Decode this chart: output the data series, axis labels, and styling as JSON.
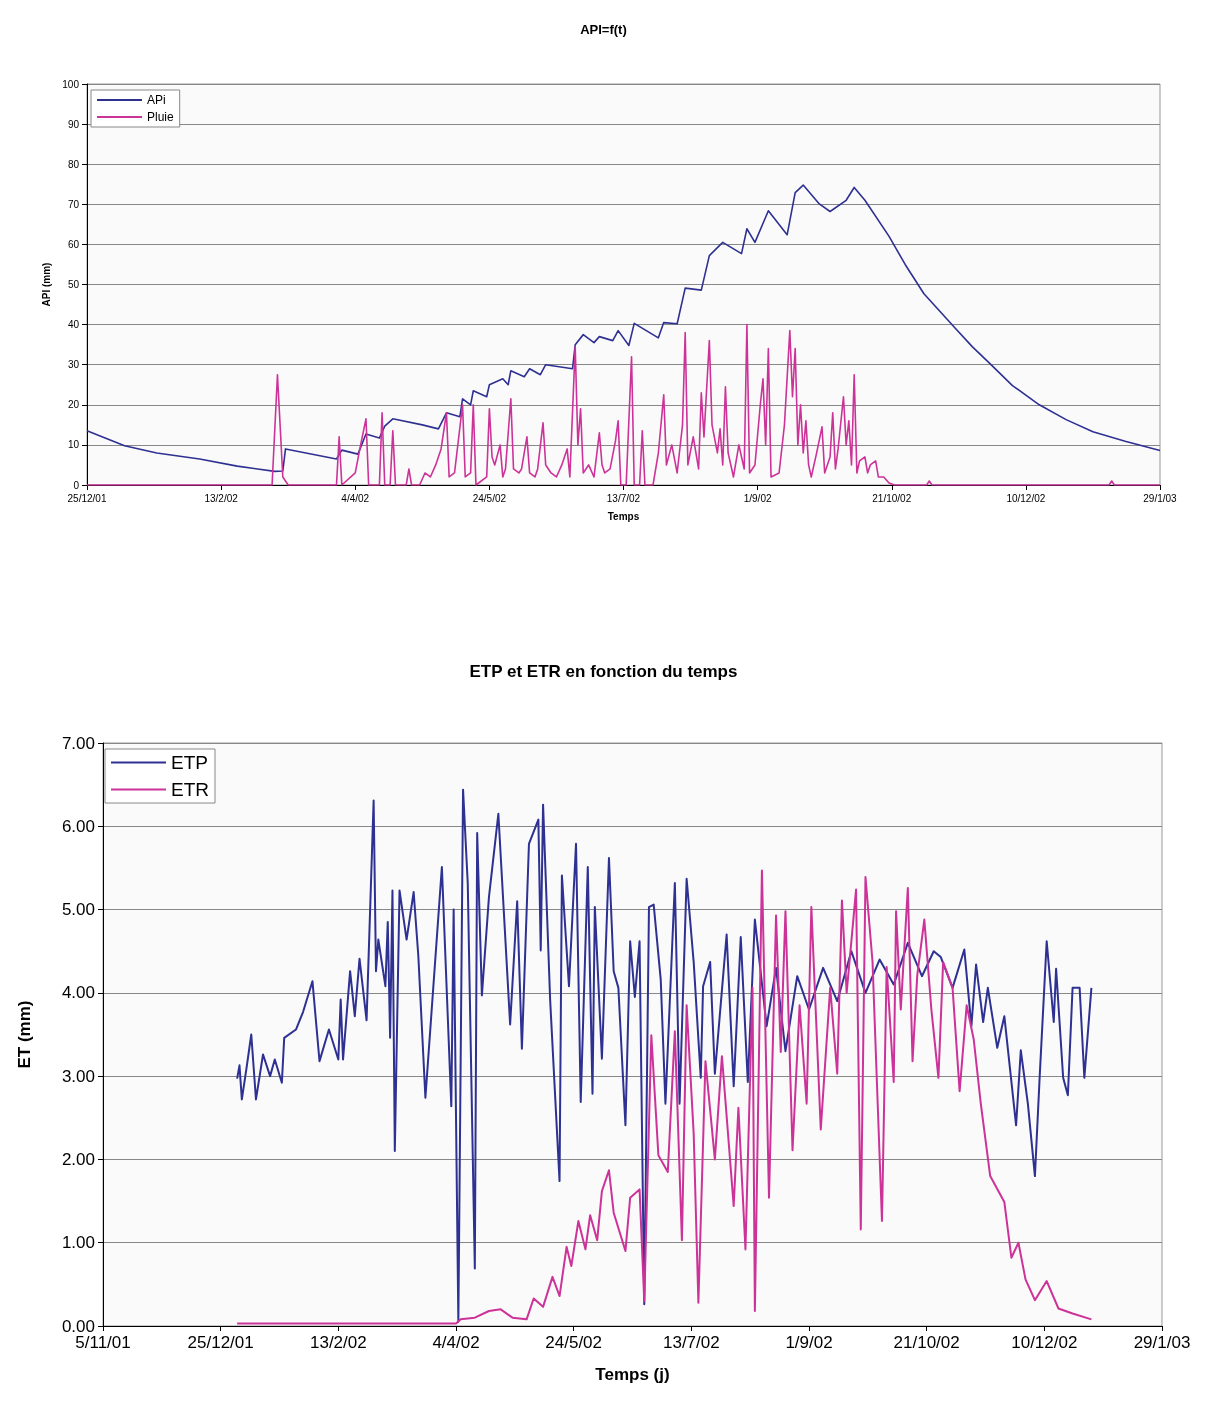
{
  "chart_data": [
    {
      "type": "line",
      "title": "API=f(t)",
      "xlabel": "Temps",
      "ylabel": "API (mm)",
      "xlim": [
        "2001-12-25",
        "2003-01-29"
      ],
      "xticks": [
        {
          "value": "2001-12-25",
          "label": "25/12/01"
        },
        {
          "value": "2002-02-13",
          "label": "13/2/02"
        },
        {
          "value": "2002-04-04",
          "label": "4/4/02"
        },
        {
          "value": "2002-05-24",
          "label": "24/5/02"
        },
        {
          "value": "2002-07-13",
          "label": "13/7/02"
        },
        {
          "value": "2002-09-01",
          "label": "1/9/02"
        },
        {
          "value": "2002-10-21",
          "label": "21/10/02"
        },
        {
          "value": "2002-12-10",
          "label": "10/12/02"
        },
        {
          "value": "2003-01-29",
          "label": "29/1/03"
        }
      ],
      "ylim": [
        0,
        100
      ],
      "yticks": [
        0,
        10,
        20,
        30,
        40,
        50,
        60,
        70,
        80,
        90,
        100
      ],
      "grid": "y",
      "legend": "top left",
      "series": [
        {
          "name": "APi",
          "color": "#2e3192",
          "x": [
            "2001-12-25",
            "2002-01-08",
            "2002-01-20",
            "2002-02-05",
            "2002-02-19",
            "2002-03-05",
            "2002-03-08",
            "2002-03-09",
            "2002-03-28",
            "2002-03-30",
            "2002-04-05",
            "2002-04-08",
            "2002-04-13",
            "2002-04-15",
            "2002-04-18",
            "2002-04-29",
            "2002-05-05",
            "2002-05-08",
            "2002-05-13",
            "2002-05-14",
            "2002-05-17",
            "2002-05-18",
            "2002-05-23",
            "2002-05-24",
            "2002-05-29",
            "2002-05-31",
            "2002-06-01",
            "2002-06-06",
            "2002-06-08",
            "2002-06-12",
            "2002-06-14",
            "2002-06-24",
            "2002-06-25",
            "2002-06-28",
            "2002-07-02",
            "2002-07-04",
            "2002-07-09",
            "2002-07-11",
            "2002-07-15",
            "2002-07-17",
            "2002-07-26",
            "2002-07-28",
            "2002-08-02",
            "2002-08-05",
            "2002-08-11",
            "2002-08-14",
            "2002-08-19",
            "2002-08-26",
            "2002-08-28",
            "2002-08-31",
            "2002-09-05",
            "2002-09-12",
            "2002-09-15",
            "2002-09-18",
            "2002-09-24",
            "2002-09-28",
            "2002-10-04",
            "2002-10-07",
            "2002-10-11",
            "2002-10-20",
            "2002-10-26",
            "2002-11-02",
            "2002-11-13",
            "2002-11-20",
            "2002-11-27",
            "2002-12-05",
            "2002-12-15",
            "2002-12-25",
            "2003-01-04",
            "2003-01-16",
            "2003-01-29"
          ],
          "values": [
            13.5,
            9.8,
            8.0,
            6.5,
            4.7,
            3.4,
            3.5,
            9,
            6.5,
            8.7,
            7.7,
            12.7,
            11.7,
            14.7,
            16.5,
            15,
            14,
            18,
            17,
            21.5,
            20,
            23.5,
            22,
            25,
            26.5,
            25,
            28.5,
            27,
            29,
            27.5,
            30,
            29,
            35,
            37.5,
            35.5,
            37,
            36,
            38.5,
            34.8,
            40.3,
            36.7,
            40.5,
            40.2,
            49.1,
            48.6,
            57.2,
            60.5,
            57.7,
            63.9,
            60.5,
            68.4,
            62.4,
            72.9,
            74.8,
            70.1,
            68.2,
            71,
            74.2,
            71,
            62,
            55,
            47.7,
            39.6,
            34.5,
            30,
            24.8,
            20,
            16.3,
            13.3,
            10.9,
            8.6
          ]
        },
        {
          "name": "Pluie",
          "color": "#cc3399",
          "x": [
            "2001-12-25",
            "2002-03-04",
            "2002-03-06",
            "2002-03-08",
            "2002-03-10",
            "2002-03-28",
            "2002-03-29",
            "2002-03-30",
            "2002-04-04",
            "2002-04-06",
            "2002-04-08",
            "2002-04-09",
            "2002-04-13",
            "2002-04-14",
            "2002-04-15",
            "2002-04-17",
            "2002-04-18",
            "2002-04-19",
            "2002-04-23",
            "2002-04-24",
            "2002-04-25",
            "2002-04-28",
            "2002-04-30",
            "2002-05-02",
            "2002-05-04",
            "2002-05-06",
            "2002-05-08",
            "2002-05-09",
            "2002-05-11",
            "2002-05-14",
            "2002-05-15",
            "2002-05-17",
            "2002-05-18",
            "2002-05-19",
            "2002-05-23",
            "2002-05-24",
            "2002-05-25",
            "2002-05-26",
            "2002-05-28",
            "2002-05-29",
            "2002-05-30",
            "2002-06-01",
            "2002-06-02",
            "2002-06-04",
            "2002-06-05",
            "2002-06-07",
            "2002-06-08",
            "2002-06-10",
            "2002-06-11",
            "2002-06-13",
            "2002-06-14",
            "2002-06-16",
            "2002-06-18",
            "2002-06-20",
            "2002-06-22",
            "2002-06-23",
            "2002-06-25",
            "2002-06-26",
            "2002-06-27",
            "2002-06-28",
            "2002-06-30",
            "2002-07-02",
            "2002-07-04",
            "2002-07-05",
            "2002-07-06",
            "2002-07-08",
            "2002-07-10",
            "2002-07-11",
            "2002-07-12",
            "2002-07-14",
            "2002-07-16",
            "2002-07-17",
            "2002-07-19",
            "2002-07-20",
            "2002-07-21",
            "2002-07-24",
            "2002-07-26",
            "2002-07-28",
            "2002-07-29",
            "2002-07-31",
            "2002-08-02",
            "2002-08-04",
            "2002-08-05",
            "2002-08-06",
            "2002-08-08",
            "2002-08-10",
            "2002-08-11",
            "2002-08-12",
            "2002-08-14",
            "2002-08-15",
            "2002-08-17",
            "2002-08-18",
            "2002-08-19",
            "2002-08-20",
            "2002-08-21",
            "2002-08-23",
            "2002-08-25",
            "2002-08-27",
            "2002-08-28",
            "2002-08-29",
            "2002-08-31",
            "2002-09-02",
            "2002-09-03",
            "2002-09-04",
            "2002-09-05",
            "2002-09-06",
            "2002-09-09",
            "2002-09-11",
            "2002-09-13",
            "2002-09-14",
            "2002-09-15",
            "2002-09-16",
            "2002-09-17",
            "2002-09-18",
            "2002-09-19",
            "2002-09-20",
            "2002-09-21",
            "2002-09-23",
            "2002-09-25",
            "2002-09-26",
            "2002-09-28",
            "2002-09-29",
            "2002-09-30",
            "2002-10-01",
            "2002-10-03",
            "2002-10-04",
            "2002-10-05",
            "2002-10-06",
            "2002-10-07",
            "2002-10-08",
            "2002-10-09",
            "2002-10-11",
            "2002-10-12",
            "2002-10-13",
            "2002-10-15",
            "2002-10-16",
            "2002-10-18",
            "2002-10-20",
            "2002-10-22",
            "2002-11-03",
            "2002-11-04",
            "2002-11-05",
            "2003-01-10",
            "2003-01-11",
            "2003-01-12",
            "2003-01-29"
          ],
          "values": [
            0,
            0,
            27.5,
            2,
            0,
            0,
            12,
            0,
            3,
            10,
            16.5,
            0,
            0,
            18,
            0,
            0,
            13.5,
            0,
            0,
            4,
            0,
            0,
            3,
            2,
            5,
            9,
            18,
            2,
            3,
            20,
            2,
            3,
            20,
            0,
            2,
            19,
            7,
            5,
            10,
            2,
            4,
            21.5,
            4,
            3,
            4,
            12,
            3,
            2,
            4,
            15.5,
            5,
            3,
            2,
            5,
            9,
            2,
            34.5,
            10,
            19,
            3,
            5,
            2,
            13,
            5,
            3,
            4,
            11,
            16,
            0,
            0,
            32,
            0,
            0,
            13.5,
            0,
            0,
            8,
            22.5,
            5,
            10,
            3,
            15,
            38,
            5,
            12,
            4,
            23,
            12,
            36,
            15,
            8,
            14,
            5,
            24.5,
            8,
            2,
            10,
            4,
            40,
            3,
            5,
            20,
            26.5,
            10,
            34,
            2,
            3,
            15,
            38.5,
            22,
            34,
            10,
            20,
            8,
            16,
            5,
            2,
            8,
            14.5,
            3,
            7,
            18,
            4,
            9,
            22,
            10,
            16,
            5,
            27.5,
            3,
            6,
            7,
            3,
            5,
            6,
            2,
            2,
            0.5,
            0,
            0,
            1,
            0,
            0,
            1,
            0,
            0
          ]
        }
      ]
    },
    {
      "type": "line",
      "title": "ETP et ETR en fonction du temps",
      "xlabel": "Temps (j)",
      "ylabel": "ET (mm)",
      "xlim": [
        "2001-11-05",
        "2003-01-29"
      ],
      "xticks": [
        {
          "value": "2001-11-05",
          "label": "5/11/01"
        },
        {
          "value": "2001-12-25",
          "label": "25/12/01"
        },
        {
          "value": "2002-02-13",
          "label": "13/2/02"
        },
        {
          "value": "2002-04-04",
          "label": "4/4/02"
        },
        {
          "value": "2002-05-24",
          "label": "24/5/02"
        },
        {
          "value": "2002-07-13",
          "label": "13/7/02"
        },
        {
          "value": "2002-09-01",
          "label": "1/9/02"
        },
        {
          "value": "2002-10-21",
          "label": "21/10/02"
        },
        {
          "value": "2002-12-10",
          "label": "10/12/02"
        },
        {
          "value": "2003-01-29",
          "label": "29/1/03"
        }
      ],
      "ylim": [
        0,
        7
      ],
      "yticks": [
        {
          "value": 0,
          "label": "0.00"
        },
        {
          "value": 1,
          "label": "1.00"
        },
        {
          "value": 2,
          "label": "2.00"
        },
        {
          "value": 3,
          "label": "3.00"
        },
        {
          "value": 4,
          "label": "4.00"
        },
        {
          "value": 5,
          "label": "5.00"
        },
        {
          "value": 6,
          "label": "6.00"
        },
        {
          "value": 7,
          "label": "7.00"
        }
      ],
      "grid": "y",
      "legend": "top left",
      "series": [
        {
          "name": "ETP",
          "color": "#2e3192",
          "x": [
            "2002-01-01",
            "2002-01-02",
            "2002-01-03",
            "2002-01-05",
            "2002-01-07",
            "2002-01-09",
            "2002-01-12",
            "2002-01-15",
            "2002-01-17",
            "2002-01-20",
            "2002-01-21",
            "2002-01-26",
            "2002-01-29",
            "2002-02-02",
            "2002-02-05",
            "2002-02-09",
            "2002-02-13",
            "2002-02-14",
            "2002-02-15",
            "2002-02-18",
            "2002-02-20",
            "2002-02-22",
            "2002-02-25",
            "2002-02-28",
            "2002-03-01",
            "2002-03-02",
            "2002-03-05",
            "2002-03-06",
            "2002-03-07",
            "2002-03-08",
            "2002-03-09",
            "2002-03-11",
            "2002-03-14",
            "2002-03-17",
            "2002-03-19",
            "2002-03-22",
            "2002-03-29",
            "2002-04-02",
            "2002-04-03",
            "2002-04-05",
            "2002-04-07",
            "2002-04-09",
            "2002-04-12",
            "2002-04-13",
            "2002-04-15",
            "2002-04-18",
            "2002-04-22",
            "2002-04-27",
            "2002-04-30",
            "2002-05-02",
            "2002-05-05",
            "2002-05-09",
            "2002-05-10",
            "2002-05-11",
            "2002-05-14",
            "2002-05-18",
            "2002-05-19",
            "2002-05-22",
            "2002-05-25",
            "2002-05-27",
            "2002-05-30",
            "2002-06-01",
            "2002-06-02",
            "2002-06-05",
            "2002-06-08",
            "2002-06-10",
            "2002-06-12",
            "2002-06-15",
            "2002-06-17",
            "2002-06-19",
            "2002-06-21",
            "2002-06-23",
            "2002-06-25",
            "2002-06-27",
            "2002-06-30",
            "2002-07-02",
            "2002-07-06",
            "2002-07-08",
            "2002-07-11",
            "2002-07-14",
            "2002-07-17",
            "2002-07-18",
            "2002-07-21",
            "2002-07-23",
            "2002-07-28",
            "2002-07-31",
            "2002-08-03",
            "2002-08-06",
            "2002-08-09",
            "2002-08-14",
            "2002-08-18",
            "2002-08-22",
            "2002-08-27",
            "2002-09-01",
            "2002-09-07",
            "2002-09-13",
            "2002-09-19",
            "2002-09-25",
            "2002-10-01",
            "2002-10-07",
            "2002-10-13",
            "2002-10-19",
            "2002-10-24",
            "2002-10-27",
            "2002-11-01",
            "2002-11-06",
            "2002-11-09",
            "2002-11-11",
            "2002-11-14",
            "2002-11-16",
            "2002-11-20",
            "2002-11-23",
            "2002-11-28",
            "2002-11-30",
            "2002-12-03",
            "2002-12-06",
            "2002-12-08",
            "2002-12-11",
            "2002-12-14",
            "2002-12-15",
            "2002-12-18",
            "2002-12-20",
            "2002-12-22",
            "2002-12-25",
            "2002-12-27",
            "2002-12-30"
          ],
          "values": [
            2.97,
            3.13,
            2.72,
            3.1,
            3.5,
            2.72,
            3.26,
            3.0,
            3.2,
            2.92,
            3.46,
            3.56,
            3.77,
            4.14,
            3.18,
            3.56,
            3.2,
            3.92,
            3.2,
            4.26,
            3.72,
            4.41,
            3.67,
            6.31,
            4.26,
            4.64,
            4.08,
            4.85,
            3.46,
            5.23,
            2.1,
            5.23,
            4.64,
            5.21,
            4.44,
            2.74,
            5.51,
            2.64,
            5.0,
            0.05,
            6.44,
            5.31,
            0.69,
            5.92,
            3.97,
            5.15,
            6.15,
            3.62,
            5.1,
            3.33,
            5.79,
            6.08,
            4.51,
            6.26,
            3.92,
            1.74,
            5.41,
            4.08,
            5.79,
            2.69,
            5.51,
            2.79,
            5.03,
            3.21,
            5.62,
            4.26,
            4.06,
            2.41,
            4.62,
            3.95,
            4.62,
            0.26,
            5.03,
            5.06,
            4.16,
            2.67,
            5.32,
            2.67,
            5.37,
            4.37,
            2.98,
            4.08,
            4.37,
            3.03,
            4.7,
            2.88,
            4.67,
            2.93,
            4.88,
            3.6,
            4.3,
            3.3,
            4.2,
            3.8,
            4.3,
            3.9,
            4.5,
            4.0,
            4.4,
            4.1,
            4.6,
            4.2,
            4.5,
            4.43,
            4.06,
            4.52,
            3.6,
            4.34,
            3.65,
            4.06,
            3.34,
            3.72,
            2.41,
            3.31,
            2.67,
            1.8,
            2.98,
            4.62,
            3.65,
            4.29,
            2.98,
            2.77,
            4.06,
            4.06,
            2.98,
            4.06
          ]
        },
        {
          "name": "ETR",
          "color": "#cc3399",
          "x": [
            "2002-01-01",
            "2002-04-04",
            "2002-04-06",
            "2002-04-12",
            "2002-04-18",
            "2002-04-23",
            "2002-04-28",
            "2002-05-04",
            "2002-05-07",
            "2002-05-11",
            "2002-05-15",
            "2002-05-18",
            "2002-05-21",
            "2002-05-23",
            "2002-05-26",
            "2002-05-29",
            "2002-05-31",
            "2002-06-03",
            "2002-06-05",
            "2002-06-08",
            "2002-06-10",
            "2002-06-15",
            "2002-06-17",
            "2002-06-21",
            "2002-06-23",
            "2002-06-26",
            "2002-06-29",
            "2002-07-03",
            "2002-07-06",
            "2002-07-09",
            "2002-07-11",
            "2002-07-14",
            "2002-07-16",
            "2002-07-19",
            "2002-07-23",
            "2002-07-26",
            "2002-07-31",
            "2002-08-02",
            "2002-08-05",
            "2002-08-08",
            "2002-08-09",
            "2002-08-12",
            "2002-08-15",
            "2002-08-18",
            "2002-08-20",
            "2002-08-22",
            "2002-08-25",
            "2002-08-28",
            "2002-08-31",
            "2002-09-02",
            "2002-09-06",
            "2002-09-10",
            "2002-09-13",
            "2002-09-15",
            "2002-09-17",
            "2002-09-21",
            "2002-09-23",
            "2002-09-25",
            "2002-09-28",
            "2002-10-02",
            "2002-10-04",
            "2002-10-07",
            "2002-10-08",
            "2002-10-10",
            "2002-10-13",
            "2002-10-15",
            "2002-10-17",
            "2002-10-20",
            "2002-10-23",
            "2002-10-26",
            "2002-10-28",
            "2002-11-01",
            "2002-11-04",
            "2002-11-07",
            "2002-11-10",
            "2002-11-13",
            "2002-11-17",
            "2002-11-23",
            "2002-11-26",
            "2002-11-29",
            "2002-12-02",
            "2002-12-06",
            "2002-12-11",
            "2002-12-16",
            "2002-12-22",
            "2002-12-30"
          ],
          "values": [
            0.03,
            0.03,
            0.08,
            0.1,
            0.18,
            0.2,
            0.1,
            0.08,
            0.33,
            0.23,
            0.59,
            0.36,
            0.95,
            0.72,
            1.26,
            0.92,
            1.33,
            1.03,
            1.62,
            1.87,
            1.36,
            0.9,
            1.54,
            1.64,
            0.3,
            3.49,
            2.05,
            1.85,
            3.54,
            1.03,
            3.85,
            2.31,
            0.28,
            3.18,
            2.0,
            3.24,
            1.44,
            2.62,
            0.92,
            4.06,
            0.18,
            5.47,
            1.54,
            4.93,
            3.29,
            4.98,
            2.11,
            3.85,
            2.67,
            5.03,
            2.36,
            4.06,
            3.03,
            5.11,
            4.0,
            5.24,
            1.16,
            5.39,
            4.37,
            1.26,
            4.31,
            2.93,
            4.98,
            3.8,
            5.26,
            3.18,
            4.21,
            4.88,
            3.8,
            2.98,
            4.37,
            4.06,
            2.82,
            3.85,
            3.44,
            2.67,
            1.8,
            1.49,
            0.82,
            1.0,
            0.56,
            0.31,
            0.54,
            0.21,
            0.15,
            0.08
          ]
        }
      ]
    }
  ]
}
